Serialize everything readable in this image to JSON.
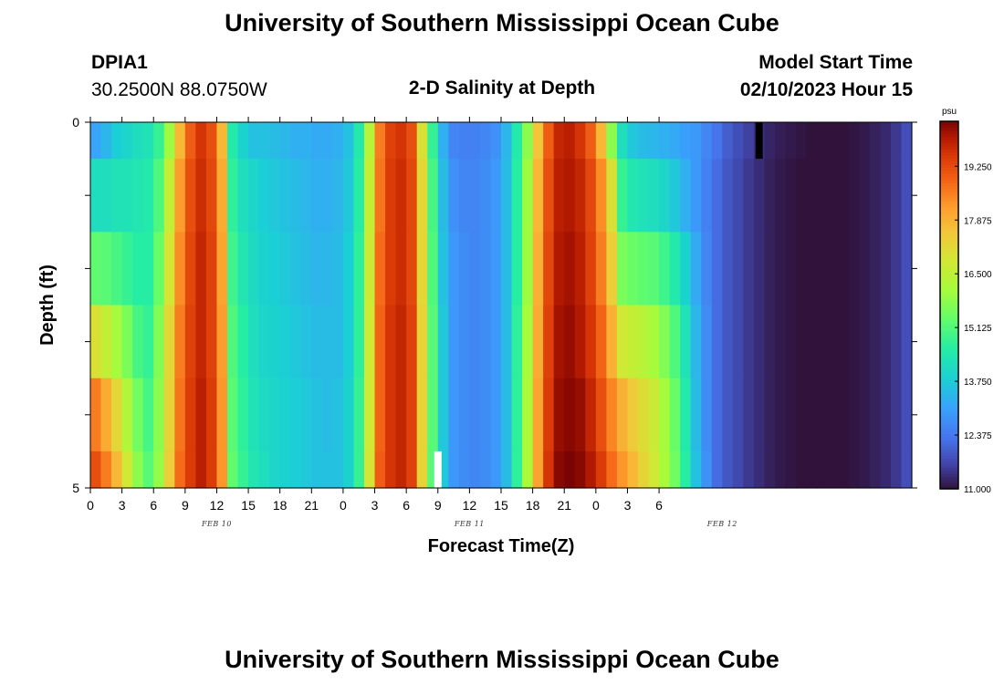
{
  "header": {
    "title": "University of Southern Mississippi Ocean Cube",
    "station_id": "DPIA1",
    "coordinates": "30.2500N  88.0750W",
    "chart_title": "2-D Salinity at Depth",
    "model_start_label": "Model Start Time",
    "model_start_value": "02/10/2023 Hour 15"
  },
  "footer": {
    "title": "University of Southern Mississippi Ocean Cube"
  },
  "chart_data": {
    "type": "heatmap",
    "title": "2-D Salinity at Depth",
    "xlabel": "Forecast Time(Z)",
    "ylabel": "Depth (ft)",
    "unit": "psu",
    "ylim": [
      0,
      5
    ],
    "y_tick_labels": [
      "0",
      "5"
    ],
    "x_tick_labels": [
      "0",
      "3",
      "6",
      "9",
      "12",
      "15",
      "18",
      "21",
      "0",
      "3",
      "6",
      "9",
      "12",
      "15",
      "18",
      "21",
      "0",
      "3",
      "6"
    ],
    "date_labels": [
      {
        "text": "FEB 10",
        "hour": 12
      },
      {
        "text": "FEB 11",
        "hour": 36
      },
      {
        "text": "FEB 12",
        "hour": 60
      }
    ],
    "x_range_hours": [
      0,
      78
    ],
    "depth_levels": [
      {
        "from": 0,
        "to": 0.5
      },
      {
        "from": 0.5,
        "to": 1.5
      },
      {
        "from": 1.5,
        "to": 2.5
      },
      {
        "from": 2.5,
        "to": 3.5
      },
      {
        "from": 3.5,
        "to": 4.5
      },
      {
        "from": 4.5,
        "to": 5
      }
    ],
    "hours": [
      0,
      1,
      2,
      3,
      4,
      5,
      6,
      7,
      8,
      9,
      10,
      11,
      12,
      13,
      14,
      15,
      16,
      17,
      18,
      19,
      20,
      21,
      22,
      23,
      24,
      25,
      26,
      27,
      28,
      29,
      30,
      31,
      32,
      33,
      34,
      35,
      36,
      37,
      38,
      39,
      40,
      41,
      42,
      43,
      44,
      45,
      46,
      47,
      48,
      49,
      50,
      51,
      52,
      53,
      54,
      55,
      56,
      57,
      58,
      59,
      60,
      61,
      62,
      63,
      64,
      65,
      66,
      67,
      67,
      69,
      70,
      71,
      72,
      73,
      74,
      75,
      76,
      77
    ],
    "salinity": [
      [
        13.1,
        13.4,
        13.8,
        14.0,
        14.2,
        14.3,
        14.8,
        16.0,
        17.8,
        19.0,
        19.6,
        19.2,
        17.8,
        14.5,
        13.9,
        13.6,
        13.6,
        13.5,
        13.4,
        13.3,
        13.3,
        13.2,
        13.2,
        13.3,
        13.6,
        14.5,
        16.4,
        18.6,
        19.4,
        19.6,
        19.2,
        17.0,
        14.8,
        13.3,
        12.6,
        12.5,
        12.5,
        12.6,
        12.8,
        13.4,
        14.5,
        15.8,
        17.6,
        19.0,
        19.8,
        19.9,
        19.6,
        19.0,
        17.8,
        15.8,
        14.2,
        13.7,
        13.5,
        13.4,
        13.3,
        13.2,
        13.0,
        12.9,
        12.6,
        12.3,
        12.0,
        11.8,
        11.6,
        11.4,
        11.25,
        11.15,
        11.1,
        11.05,
        11.0,
        11.0,
        11.0,
        11.0,
        11.05,
        11.1,
        11.2,
        11.3,
        11.5,
        11.8
      ],
      [
        14.2,
        14.2,
        14.3,
        14.3,
        14.4,
        14.5,
        15.1,
        16.6,
        18.2,
        19.2,
        19.7,
        19.3,
        18.0,
        14.7,
        14.2,
        14.0,
        13.8,
        13.7,
        13.6,
        13.5,
        13.4,
        13.3,
        13.3,
        13.4,
        13.7,
        14.6,
        16.6,
        18.7,
        19.5,
        19.7,
        19.3,
        17.2,
        15.0,
        13.5,
        12.8,
        12.6,
        12.6,
        12.7,
        12.9,
        13.5,
        14.6,
        16.0,
        17.8,
        19.2,
        19.9,
        20.0,
        19.8,
        19.3,
        18.4,
        17.0,
        14.8,
        14.4,
        14.3,
        14.2,
        14.0,
        13.7,
        13.3,
        12.9,
        12.5,
        12.2,
        11.9,
        11.7,
        11.5,
        11.35,
        11.2,
        11.1,
        11.05,
        11.0,
        11.0,
        11.0,
        11.0,
        11.0,
        11.05,
        11.1,
        11.2,
        11.3,
        11.5,
        11.8
      ],
      [
        15.3,
        15.2,
        15.0,
        14.8,
        14.6,
        14.6,
        15.4,
        16.9,
        18.4,
        19.3,
        19.8,
        19.4,
        18.1,
        14.9,
        14.4,
        14.1,
        13.9,
        13.8,
        13.7,
        13.6,
        13.5,
        13.4,
        13.4,
        13.5,
        13.8,
        14.7,
        16.7,
        18.8,
        19.5,
        19.7,
        19.3,
        17.2,
        15.1,
        13.6,
        12.9,
        12.7,
        12.6,
        12.7,
        12.9,
        13.5,
        14.6,
        16.0,
        17.9,
        19.3,
        20.0,
        20.1,
        19.9,
        19.4,
        18.6,
        17.4,
        15.6,
        15.4,
        15.3,
        15.2,
        14.9,
        14.5,
        13.9,
        13.2,
        12.6,
        12.2,
        11.9,
        11.7,
        11.5,
        11.35,
        11.2,
        11.1,
        11.05,
        11.0,
        11.0,
        11.0,
        11.0,
        11.0,
        11.05,
        11.1,
        11.2,
        11.3,
        11.5,
        11.8
      ],
      [
        17.0,
        16.6,
        16.1,
        15.6,
        15.0,
        14.8,
        15.7,
        17.2,
        18.6,
        19.4,
        19.8,
        19.4,
        18.2,
        15.1,
        14.6,
        14.2,
        14.0,
        13.9,
        13.8,
        13.7,
        13.6,
        13.5,
        13.5,
        13.5,
        13.8,
        14.7,
        16.8,
        18.9,
        19.6,
        19.8,
        19.4,
        17.3,
        15.2,
        13.7,
        12.9,
        12.7,
        12.6,
        12.7,
        12.9,
        13.5,
        14.7,
        16.1,
        18.0,
        19.4,
        20.1,
        20.2,
        20.0,
        19.6,
        18.9,
        17.9,
        16.8,
        16.6,
        16.4,
        16.1,
        15.7,
        15.1,
        14.3,
        13.4,
        12.7,
        12.2,
        11.9,
        11.7,
        11.5,
        11.35,
        11.2,
        11.1,
        11.05,
        11.0,
        11.0,
        11.0,
        11.0,
        11.0,
        11.05,
        11.1,
        11.2,
        11.3,
        11.5,
        11.8
      ],
      [
        18.6,
        18.0,
        17.2,
        16.3,
        15.5,
        15.0,
        15.8,
        17.3,
        18.7,
        19.5,
        19.9,
        19.5,
        18.3,
        15.2,
        14.7,
        14.3,
        14.1,
        14.0,
        13.9,
        13.8,
        13.7,
        13.6,
        13.5,
        13.6,
        13.9,
        14.8,
        16.8,
        18.9,
        19.6,
        19.8,
        19.4,
        17.3,
        15.2,
        13.7,
        12.9,
        12.7,
        12.6,
        12.7,
        12.9,
        13.5,
        14.7,
        16.2,
        18.1,
        19.5,
        20.2,
        20.3,
        20.2,
        19.8,
        19.2,
        18.5,
        17.9,
        17.5,
        17.1,
        16.7,
        16.1,
        15.4,
        14.5,
        13.5,
        12.7,
        12.2,
        11.9,
        11.7,
        11.5,
        11.35,
        11.2,
        11.1,
        11.05,
        11.0,
        11.0,
        11.0,
        11.0,
        11.0,
        11.05,
        11.1,
        11.2,
        11.3,
        11.5,
        11.8
      ],
      [
        19.2,
        18.6,
        17.8,
        16.8,
        15.8,
        15.2,
        15.9,
        17.4,
        18.8,
        19.5,
        19.9,
        19.5,
        18.3,
        15.3,
        14.8,
        14.4,
        14.2,
        14.0,
        13.9,
        13.8,
        13.7,
        13.6,
        13.6,
        13.6,
        13.9,
        14.8,
        16.9,
        19.0,
        19.6,
        19.8,
        19.4,
        17.3,
        15.2,
        13.7,
        12.9,
        12.7,
        12.6,
        12.7,
        12.9,
        13.5,
        14.7,
        16.2,
        18.1,
        19.6,
        20.3,
        20.4,
        20.3,
        20.0,
        19.5,
        18.8,
        18.3,
        17.8,
        17.3,
        16.8,
        16.2,
        15.5,
        14.6,
        13.6,
        12.8,
        12.2,
        11.9,
        11.7,
        11.5,
        11.35,
        11.2,
        11.1,
        11.05,
        11.0,
        11.0,
        11.0,
        11.0,
        11.0,
        11.05,
        11.1,
        11.2,
        11.3,
        11.5,
        11.8
      ]
    ],
    "colorbar": {
      "label": "psu",
      "min": 11.0,
      "max": 20.4,
      "ticks": [
        "19.250",
        "17.875",
        "16.500",
        "15.125",
        "13.750",
        "12.375",
        "11.000"
      ],
      "tick_values": [
        19.25,
        17.875,
        16.5,
        15.125,
        13.75,
        12.375,
        11.0
      ]
    },
    "markers": [
      {
        "name": "model-start-marker",
        "hour": 63.5,
        "depth_from": 0,
        "depth_to": 0.5,
        "color": "#000000"
      },
      {
        "name": "current-time-marker",
        "hour": 33,
        "depth_from": 4.5,
        "depth_to": 5,
        "color": "#ffffff"
      }
    ]
  }
}
